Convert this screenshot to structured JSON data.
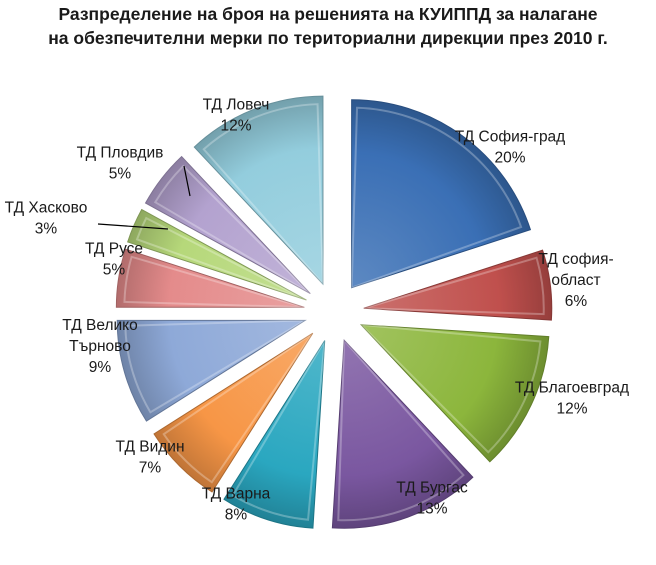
{
  "chart_data": {
    "type": "pie",
    "title_lines": [
      "Разпределение на броя на решенията на КУИППД за налагане",
      "на обезпечителни мерки по териториални дирекции през 2010 г."
    ],
    "exploded": true,
    "style": "3d-beveled",
    "series": [
      {
        "label": [
          "ТД София-град"
        ],
        "value_label": "20%",
        "value": 20,
        "color": "#3a6fb5"
      },
      {
        "label": [
          "ТД софия-",
          "област"
        ],
        "value_label": "6%",
        "value": 6,
        "color": "#c0504d"
      },
      {
        "label": [
          "ТД Благоевград"
        ],
        "value_label": "12%",
        "value": 12,
        "color": "#8cb63c"
      },
      {
        "label": [
          "ТД Бургас"
        ],
        "value_label": "13%",
        "value": 13,
        "color": "#7a57a0"
      },
      {
        "label": [
          "ТД  Варна"
        ],
        "value_label": "8%",
        "value": 8,
        "color": "#2aa7c0"
      },
      {
        "label": [
          "ТД Видин"
        ],
        "value_label": "7%",
        "value": 7,
        "color": "#f79646"
      },
      {
        "label": [
          "ТД Велико",
          "Търново"
        ],
        "value_label": "9%",
        "value": 9,
        "color": "#8ea9d8"
      },
      {
        "label": [
          "ТД Русе"
        ],
        "value_label": "5%",
        "value": 5,
        "color": "#e48b8b"
      },
      {
        "label": [
          "ТД Хасково"
        ],
        "value_label": "3%",
        "value": 3,
        "color": "#b6d87a"
      },
      {
        "label": [
          "ТД Пловдив"
        ],
        "value_label": "5%",
        "value": 5,
        "color": "#b3a2cf"
      },
      {
        "label": [
          "ТД Ловеч"
        ],
        "value_label": "12%",
        "value": 12,
        "color": "#93cddd"
      }
    ]
  }
}
